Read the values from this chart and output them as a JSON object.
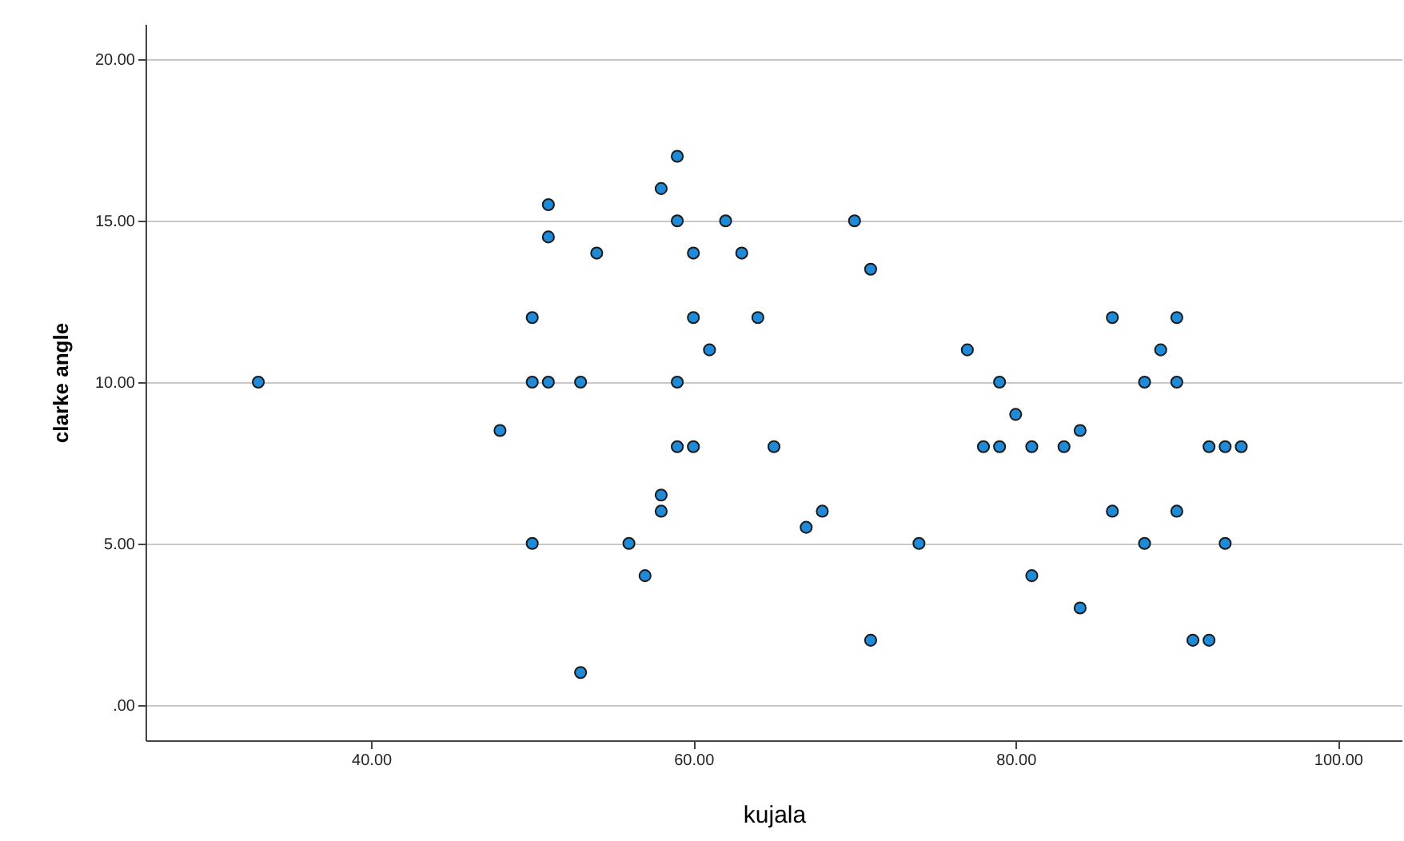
{
  "chart_data": {
    "type": "scatter",
    "xlabel": "kujala",
    "ylabel": "clarke angle",
    "marker": "circle",
    "grid": "y",
    "xlim": [
      26,
      104
    ],
    "ylim": [
      -1.1,
      21.1
    ],
    "xticks": [
      {
        "value": 40,
        "label": "40.00"
      },
      {
        "value": 60,
        "label": "60.00"
      },
      {
        "value": 80,
        "label": "80.00"
      },
      {
        "value": 100,
        "label": "100.00"
      }
    ],
    "yticks": [
      {
        "value": 0,
        "label": ".00"
      },
      {
        "value": 5,
        "label": "5.00"
      },
      {
        "value": 10,
        "label": "10.00"
      },
      {
        "value": 15,
        "label": "15.00"
      },
      {
        "value": 20,
        "label": "20.00"
      }
    ],
    "series": [
      {
        "color": "#1f8ad8",
        "x": [
          33,
          48,
          50,
          50,
          50,
          51,
          51,
          51,
          53,
          53,
          54,
          56,
          57,
          58,
          58,
          58,
          59,
          59,
          59,
          59,
          60,
          60,
          60,
          61,
          62,
          63,
          64,
          65,
          67,
          68,
          70,
          71,
          71,
          74,
          77,
          78,
          79,
          79,
          80,
          81,
          81,
          83,
          84,
          84,
          86,
          86,
          88,
          88,
          89,
          90,
          90,
          90,
          91,
          92,
          92,
          93,
          93,
          94
        ],
        "values": [
          10,
          8.5,
          12,
          10,
          5,
          15.5,
          14.5,
          10,
          10,
          1,
          14,
          5,
          4,
          16,
          6.5,
          6,
          17,
          15,
          10,
          8,
          14,
          12,
          8,
          11,
          15,
          14,
          12,
          8,
          5.5,
          6,
          15,
          13.5,
          2,
          5,
          11,
          8,
          10,
          8,
          9,
          8,
          4,
          8,
          8.5,
          3,
          12,
          6,
          10,
          5,
          11,
          12,
          10,
          6,
          2,
          2,
          8,
          8,
          5,
          8
        ]
      }
    ]
  }
}
